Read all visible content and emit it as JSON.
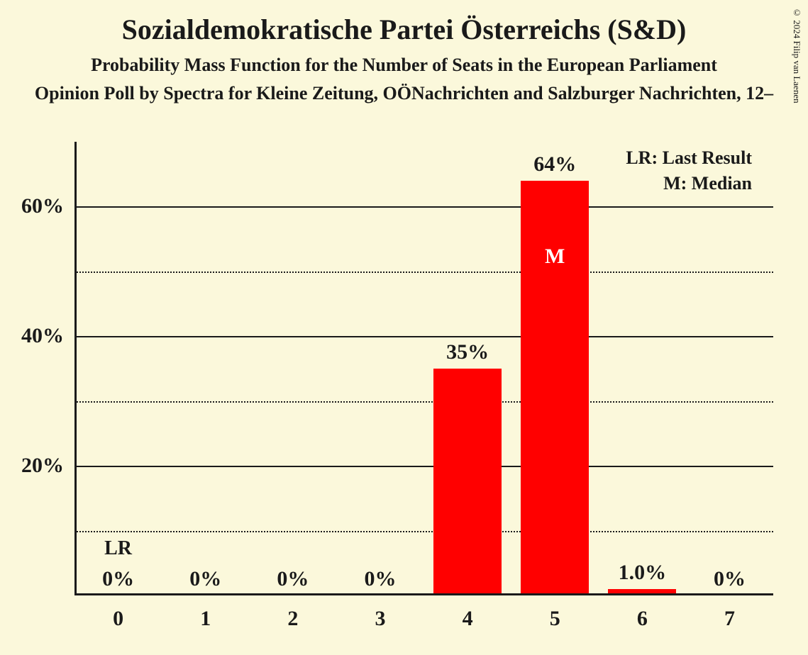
{
  "title": "Sozialdemokratische Partei Österreichs (S&D)",
  "subtitle1": "Probability Mass Function for the Number of Seats in the European Parliament",
  "subtitle2": "Opinion Poll by Spectra for Kleine Zeitung, OÖNachrichten and Salzburger Nachrichten, 12–",
  "copyright": "© 2024 Filip van Laenen",
  "chart": {
    "type": "bar",
    "background_color": "#fbf8db",
    "bar_color": "#ff0000",
    "axis_color": "#1a1a1a",
    "text_color": "#1a1a1a",
    "median_text_color": "#ffffff",
    "categories": [
      0,
      1,
      2,
      3,
      4,
      5,
      6,
      7
    ],
    "values": [
      0,
      0,
      0,
      0,
      35,
      64,
      1.0,
      0
    ],
    "value_labels": [
      "0%",
      "0%",
      "0%",
      "0%",
      "35%",
      "64%",
      "1.0%",
      "0%"
    ],
    "y_ticks_major": [
      20,
      40,
      60
    ],
    "y_ticks_minor": [
      10,
      30,
      50
    ],
    "y_tick_labels": [
      "20%",
      "40%",
      "60%"
    ],
    "y_max": 70,
    "last_result_index": 0,
    "median_index": 5,
    "lr_text": "LR",
    "median_text": "M",
    "legend": {
      "lr": "LR: Last Result",
      "m": "M: Median"
    },
    "title_fontsize": 40,
    "subtitle_fontsize": 26,
    "label_fontsize": 30,
    "legend_fontsize": 26,
    "bar_width_ratio": 0.78
  }
}
